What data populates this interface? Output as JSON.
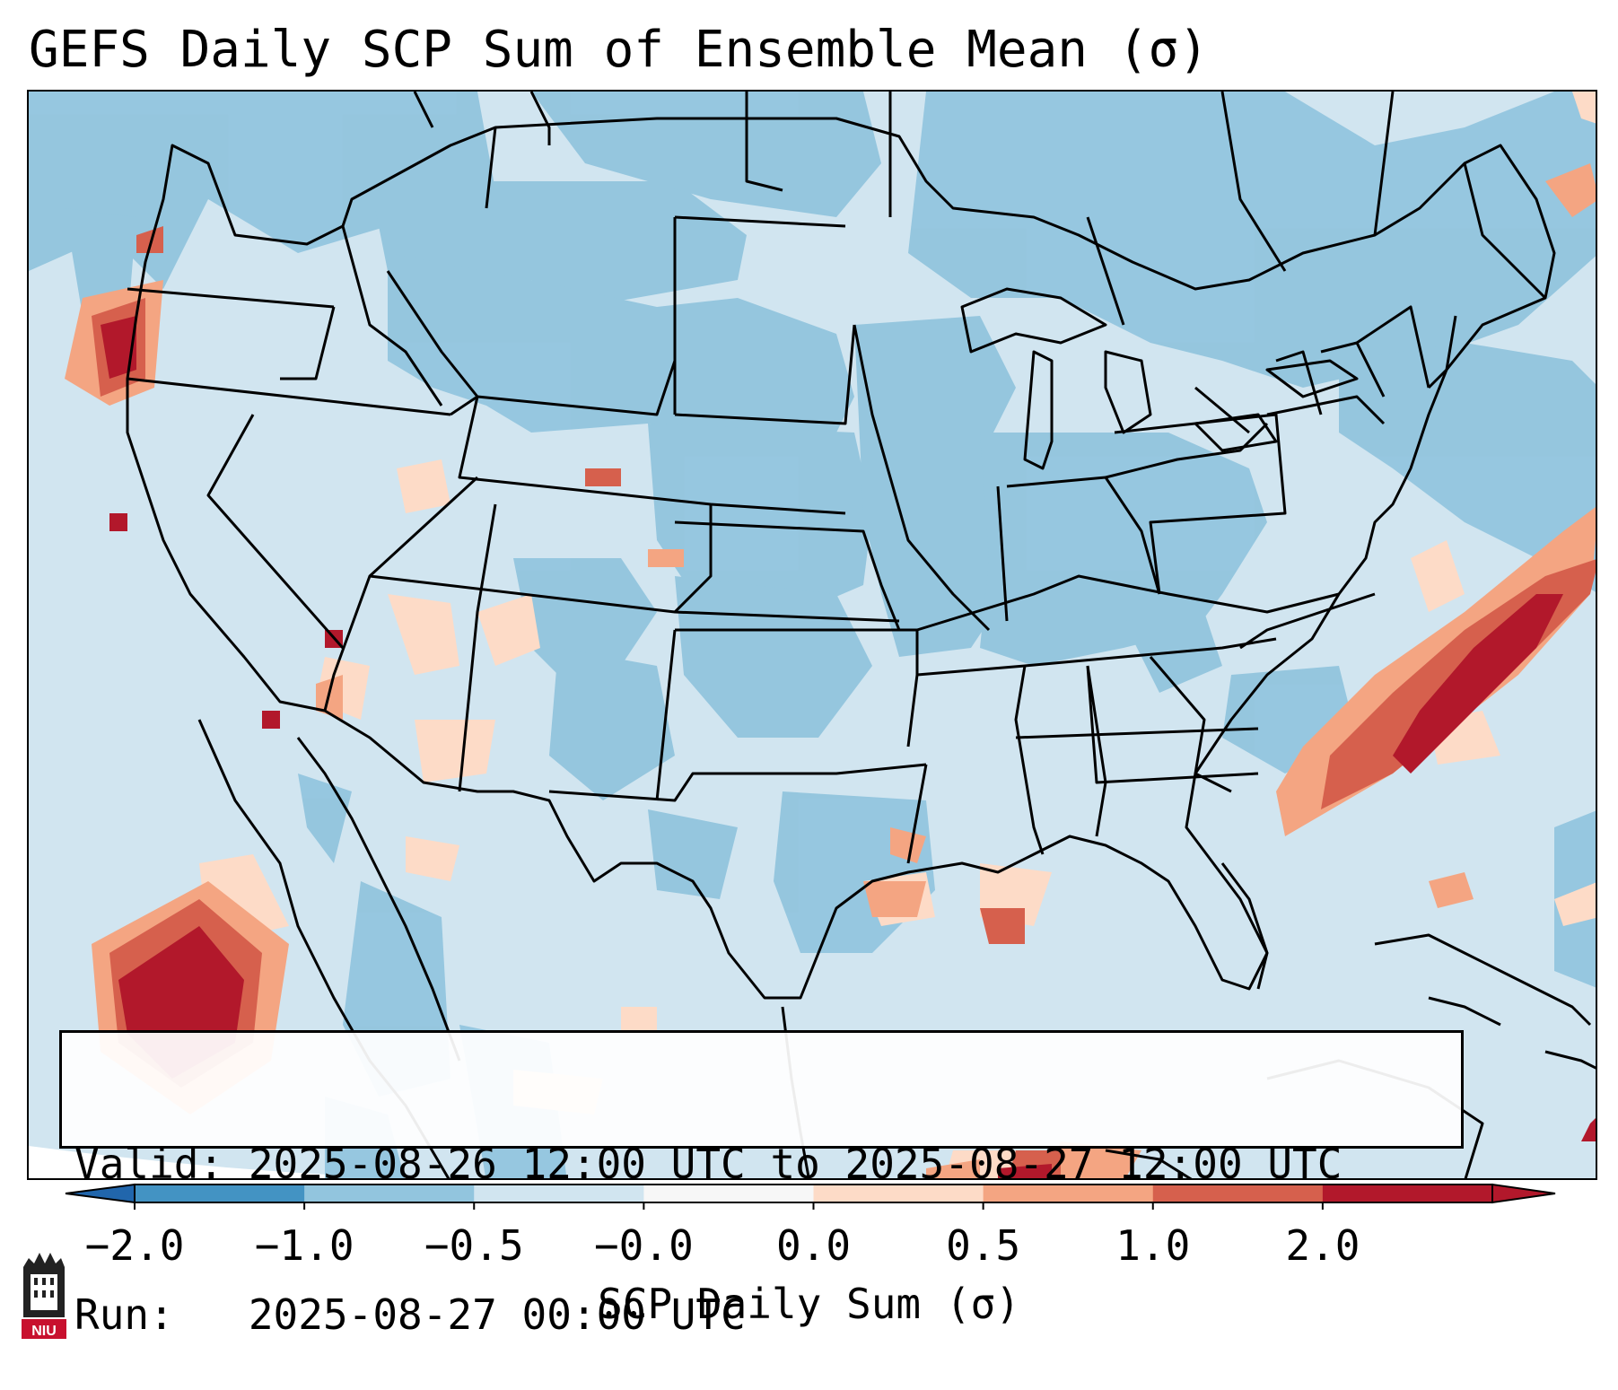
{
  "title": "GEFS Daily SCP Sum of Ensemble Mean (σ)",
  "info": {
    "valid_line": "Valid: 2025-08-26 12:00 UTC to 2025-08-27 12:00 UTC",
    "run_line": "Run:   2025-08-27 00:00 UTC"
  },
  "colorbar": {
    "label": "SCP Daily Sum (σ)",
    "ticks": [
      "−2.0",
      "−1.0",
      "−0.5",
      "−0.0",
      "0.0",
      "0.5",
      "1.0",
      "2.0"
    ],
    "colors": [
      "#4393c3",
      "#92c5de",
      "#d1e5f0",
      "#f7f7f7",
      "#fddbc7",
      "#f4a582",
      "#d6604d",
      "#b2182b"
    ],
    "under_color": "#2166ac",
    "over_color": "#b2182b"
  },
  "logo": {
    "text": "NIU",
    "icon": "niu-tower-logo-icon"
  },
  "map": {
    "region": "Continental United States",
    "field_colors": {
      "background": "#d1e5f0",
      "weak_negative": "#92c5de",
      "weak_positive": "#fddbc7",
      "moderate_positive": "#f4a582",
      "strong_positive": "#d6604d",
      "extreme_positive": "#b2182b"
    }
  }
}
